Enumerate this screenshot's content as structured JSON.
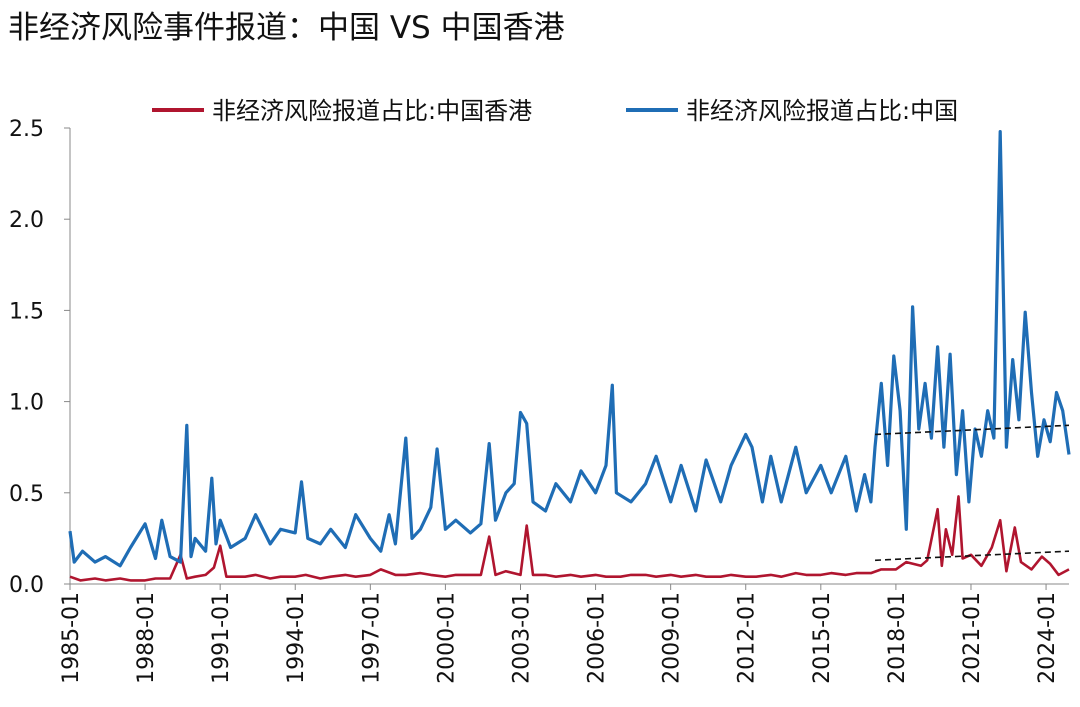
{
  "title": "非经济风险事件报道：中国 VS 中国香港",
  "colors": {
    "hk": "#B0152F",
    "cn": "#1F6DB5",
    "trend": "#111111"
  },
  "chart_data": {
    "type": "line",
    "title": "非经济风险事件报道：中国 VS 中国香港",
    "xlabel": "",
    "ylabel": "",
    "xlim": [
      "1985-01",
      "2024-12"
    ],
    "ylim": [
      0,
      2.5
    ],
    "y_ticks": [
      "0.0",
      "0.5",
      "1.0",
      "1.5",
      "2.0",
      "2.5"
    ],
    "x_ticks": [
      "1985-01",
      "1988-01",
      "1991-01",
      "1994-01",
      "1997-01",
      "2000-01",
      "2003-01",
      "2006-01",
      "2009-01",
      "2012-01",
      "2015-01",
      "2018-01",
      "2021-01",
      "2024-01"
    ],
    "legend_position": "top",
    "grid": false,
    "series": [
      {
        "name": "非经济风险报道占比:中国香港",
        "color": "#B0152F",
        "points": [
          [
            "1985-01",
            0.04
          ],
          [
            "1985-06",
            0.02
          ],
          [
            "1986-01",
            0.03
          ],
          [
            "1986-06",
            0.02
          ],
          [
            "1987-01",
            0.03
          ],
          [
            "1987-06",
            0.02
          ],
          [
            "1988-01",
            0.02
          ],
          [
            "1988-06",
            0.03
          ],
          [
            "1989-01",
            0.03
          ],
          [
            "1989-06",
            0.16
          ],
          [
            "1989-09",
            0.03
          ],
          [
            "1990-01",
            0.04
          ],
          [
            "1990-06",
            0.05
          ],
          [
            "1990-10",
            0.09
          ],
          [
            "1991-01",
            0.21
          ],
          [
            "1991-04",
            0.04
          ],
          [
            "1992-01",
            0.04
          ],
          [
            "1992-06",
            0.05
          ],
          [
            "1993-01",
            0.03
          ],
          [
            "1993-06",
            0.04
          ],
          [
            "1994-01",
            0.04
          ],
          [
            "1994-06",
            0.05
          ],
          [
            "1995-01",
            0.03
          ],
          [
            "1995-06",
            0.04
          ],
          [
            "1996-01",
            0.05
          ],
          [
            "1996-06",
            0.04
          ],
          [
            "1997-01",
            0.05
          ],
          [
            "1997-06",
            0.08
          ],
          [
            "1998-01",
            0.05
          ],
          [
            "1998-06",
            0.05
          ],
          [
            "1999-01",
            0.06
          ],
          [
            "1999-06",
            0.05
          ],
          [
            "2000-01",
            0.04
          ],
          [
            "2000-06",
            0.05
          ],
          [
            "2001-01",
            0.05
          ],
          [
            "2001-06",
            0.05
          ],
          [
            "2001-10",
            0.26
          ],
          [
            "2002-01",
            0.05
          ],
          [
            "2002-06",
            0.07
          ],
          [
            "2003-01",
            0.05
          ],
          [
            "2003-04",
            0.32
          ],
          [
            "2003-07",
            0.05
          ],
          [
            "2004-01",
            0.05
          ],
          [
            "2004-06",
            0.04
          ],
          [
            "2005-01",
            0.05
          ],
          [
            "2005-06",
            0.04
          ],
          [
            "2006-01",
            0.05
          ],
          [
            "2006-06",
            0.04
          ],
          [
            "2007-01",
            0.04
          ],
          [
            "2007-06",
            0.05
          ],
          [
            "2008-01",
            0.05
          ],
          [
            "2008-06",
            0.04
          ],
          [
            "2009-01",
            0.05
          ],
          [
            "2009-06",
            0.04
          ],
          [
            "2010-01",
            0.05
          ],
          [
            "2010-06",
            0.04
          ],
          [
            "2011-01",
            0.04
          ],
          [
            "2011-06",
            0.05
          ],
          [
            "2012-01",
            0.04
          ],
          [
            "2012-06",
            0.04
          ],
          [
            "2013-01",
            0.05
          ],
          [
            "2013-06",
            0.04
          ],
          [
            "2014-01",
            0.06
          ],
          [
            "2014-06",
            0.05
          ],
          [
            "2015-01",
            0.05
          ],
          [
            "2015-06",
            0.06
          ],
          [
            "2016-01",
            0.05
          ],
          [
            "2016-06",
            0.06
          ],
          [
            "2017-01",
            0.06
          ],
          [
            "2017-06",
            0.08
          ],
          [
            "2018-01",
            0.08
          ],
          [
            "2018-06",
            0.12
          ],
          [
            "2019-01",
            0.1
          ],
          [
            "2019-04",
            0.13
          ],
          [
            "2019-09",
            0.41
          ],
          [
            "2019-11",
            0.1
          ],
          [
            "2020-01",
            0.3
          ],
          [
            "2020-04",
            0.16
          ],
          [
            "2020-07",
            0.48
          ],
          [
            "2020-09",
            0.14
          ],
          [
            "2021-01",
            0.16
          ],
          [
            "2021-06",
            0.1
          ],
          [
            "2021-11",
            0.2
          ],
          [
            "2022-03",
            0.35
          ],
          [
            "2022-06",
            0.07
          ],
          [
            "2022-10",
            0.31
          ],
          [
            "2023-01",
            0.12
          ],
          [
            "2023-06",
            0.08
          ],
          [
            "2023-11",
            0.15
          ],
          [
            "2024-03",
            0.11
          ],
          [
            "2024-07",
            0.05
          ],
          [
            "2024-12",
            0.08
          ]
        ]
      },
      {
        "name": "非经济风险报道占比:中国",
        "color": "#1F6DB5",
        "points": [
          [
            "1985-01",
            0.29
          ],
          [
            "1985-03",
            0.12
          ],
          [
            "1985-07",
            0.18
          ],
          [
            "1986-01",
            0.12
          ],
          [
            "1986-06",
            0.15
          ],
          [
            "1987-01",
            0.1
          ],
          [
            "1987-06",
            0.2
          ],
          [
            "1988-01",
            0.33
          ],
          [
            "1988-06",
            0.14
          ],
          [
            "1988-09",
            0.35
          ],
          [
            "1989-01",
            0.15
          ],
          [
            "1989-06",
            0.12
          ],
          [
            "1989-09",
            0.87
          ],
          [
            "1989-11",
            0.15
          ],
          [
            "1990-01",
            0.25
          ],
          [
            "1990-06",
            0.18
          ],
          [
            "1990-09",
            0.58
          ],
          [
            "1990-11",
            0.22
          ],
          [
            "1991-01",
            0.35
          ],
          [
            "1991-06",
            0.2
          ],
          [
            "1992-01",
            0.25
          ],
          [
            "1992-06",
            0.38
          ],
          [
            "1993-01",
            0.22
          ],
          [
            "1993-06",
            0.3
          ],
          [
            "1994-01",
            0.28
          ],
          [
            "1994-04",
            0.56
          ],
          [
            "1994-07",
            0.25
          ],
          [
            "1995-01",
            0.22
          ],
          [
            "1995-06",
            0.3
          ],
          [
            "1996-01",
            0.2
          ],
          [
            "1996-06",
            0.38
          ],
          [
            "1997-01",
            0.25
          ],
          [
            "1997-06",
            0.18
          ],
          [
            "1997-10",
            0.38
          ],
          [
            "1998-01",
            0.22
          ],
          [
            "1998-06",
            0.8
          ],
          [
            "1998-09",
            0.25
          ],
          [
            "1999-01",
            0.3
          ],
          [
            "1999-06",
            0.42
          ],
          [
            "1999-09",
            0.74
          ],
          [
            "2000-01",
            0.3
          ],
          [
            "2000-06",
            0.35
          ],
          [
            "2001-01",
            0.28
          ],
          [
            "2001-06",
            0.33
          ],
          [
            "2001-10",
            0.77
          ],
          [
            "2002-01",
            0.35
          ],
          [
            "2002-06",
            0.5
          ],
          [
            "2002-10",
            0.55
          ],
          [
            "2003-01",
            0.94
          ],
          [
            "2003-04",
            0.88
          ],
          [
            "2003-07",
            0.45
          ],
          [
            "2004-01",
            0.4
          ],
          [
            "2004-06",
            0.55
          ],
          [
            "2005-01",
            0.45
          ],
          [
            "2005-06",
            0.62
          ],
          [
            "2006-01",
            0.5
          ],
          [
            "2006-06",
            0.65
          ],
          [
            "2006-09",
            1.09
          ],
          [
            "2006-11",
            0.5
          ],
          [
            "2007-06",
            0.45
          ],
          [
            "2008-01",
            0.55
          ],
          [
            "2008-06",
            0.7
          ],
          [
            "2009-01",
            0.45
          ],
          [
            "2009-06",
            0.65
          ],
          [
            "2010-01",
            0.4
          ],
          [
            "2010-06",
            0.68
          ],
          [
            "2011-01",
            0.45
          ],
          [
            "2011-06",
            0.65
          ],
          [
            "2012-01",
            0.82
          ],
          [
            "2012-04",
            0.75
          ],
          [
            "2012-09",
            0.45
          ],
          [
            "2013-01",
            0.7
          ],
          [
            "2013-06",
            0.45
          ],
          [
            "2014-01",
            0.75
          ],
          [
            "2014-06",
            0.5
          ],
          [
            "2015-01",
            0.65
          ],
          [
            "2015-06",
            0.5
          ],
          [
            "2016-01",
            0.7
          ],
          [
            "2016-06",
            0.4
          ],
          [
            "2016-10",
            0.6
          ],
          [
            "2017-01",
            0.45
          ],
          [
            "2017-03",
            0.75
          ],
          [
            "2017-06",
            1.1
          ],
          [
            "2017-09",
            0.65
          ],
          [
            "2017-12",
            1.25
          ],
          [
            "2018-03",
            0.95
          ],
          [
            "2018-06",
            0.3
          ],
          [
            "2018-09",
            1.52
          ],
          [
            "2018-12",
            0.85
          ],
          [
            "2019-03",
            1.1
          ],
          [
            "2019-06",
            0.8
          ],
          [
            "2019-09",
            1.3
          ],
          [
            "2019-12",
            0.75
          ],
          [
            "2020-03",
            1.26
          ],
          [
            "2020-06",
            0.6
          ],
          [
            "2020-09",
            0.95
          ],
          [
            "2020-12",
            0.45
          ],
          [
            "2021-03",
            0.85
          ],
          [
            "2021-06",
            0.7
          ],
          [
            "2021-09",
            0.95
          ],
          [
            "2021-12",
            0.8
          ],
          [
            "2022-03",
            2.48
          ],
          [
            "2022-06",
            0.75
          ],
          [
            "2022-09",
            1.23
          ],
          [
            "2022-12",
            0.9
          ],
          [
            "2023-03",
            1.49
          ],
          [
            "2023-06",
            1.05
          ],
          [
            "2023-09",
            0.7
          ],
          [
            "2023-12",
            0.9
          ],
          [
            "2024-03",
            0.78
          ],
          [
            "2024-06",
            1.05
          ],
          [
            "2024-09",
            0.95
          ],
          [
            "2024-12",
            0.71
          ]
        ]
      }
    ],
    "trendlines": [
      {
        "series": "非经济风险报道占比:中国",
        "from": [
          "2017-03",
          0.82
        ],
        "to": [
          "2024-12",
          0.87
        ]
      },
      {
        "series": "非经济风险报道占比:中国香港",
        "from": [
          "2017-03",
          0.13
        ],
        "to": [
          "2024-12",
          0.18
        ]
      }
    ]
  }
}
